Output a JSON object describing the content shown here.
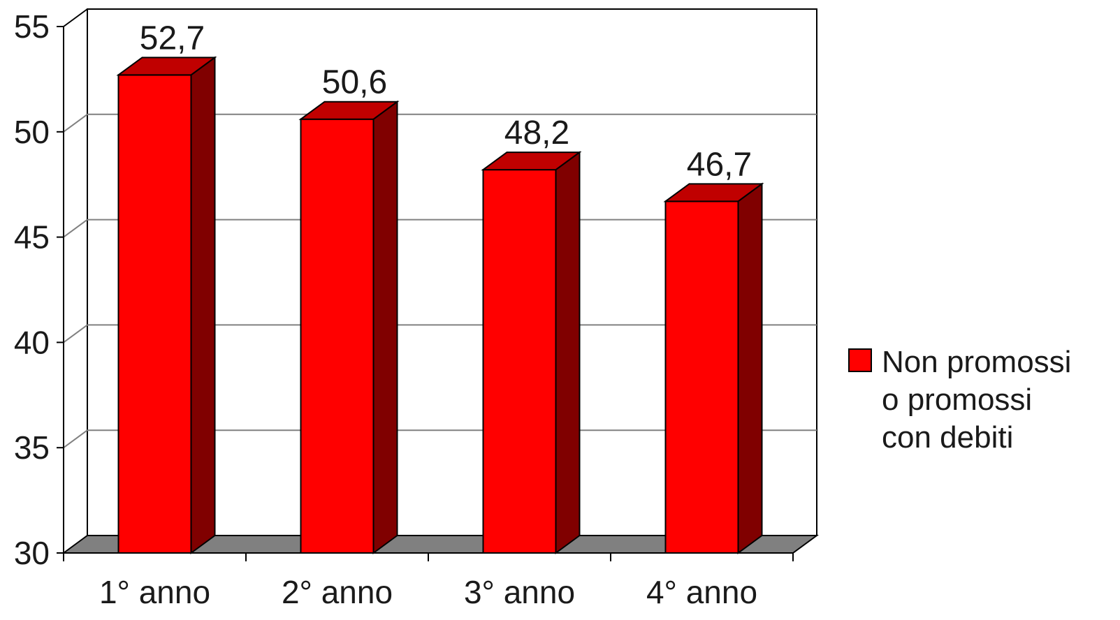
{
  "chart_data": {
    "type": "bar",
    "style": "3d-column",
    "categories": [
      "1° anno",
      "2° anno",
      "3° anno",
      "4° anno"
    ],
    "series": [
      {
        "name": "Non promossi o promossi con debiti",
        "values": [
          52.7,
          50.6,
          48.2,
          46.7
        ],
        "data_labels": [
          "52,7",
          "50,6",
          "48,2",
          "46,7"
        ],
        "color": "#ff0000",
        "side_color": "#800000",
        "top_color": "#c00000"
      }
    ],
    "ylim": [
      30,
      55
    ],
    "yticks": [
      30,
      35,
      40,
      45,
      50,
      55
    ],
    "ytick_labels": [
      "30",
      "35",
      "40",
      "45",
      "50",
      "55"
    ],
    "grid": true,
    "legend": {
      "position": "right",
      "lines": [
        "Non promossi",
        "o promossi",
        "con debiti"
      ]
    },
    "title": "",
    "xlabel": "",
    "ylabel": "",
    "colors": {
      "floor": "#808080",
      "gridline": "#808080",
      "axis": "#000000"
    }
  }
}
